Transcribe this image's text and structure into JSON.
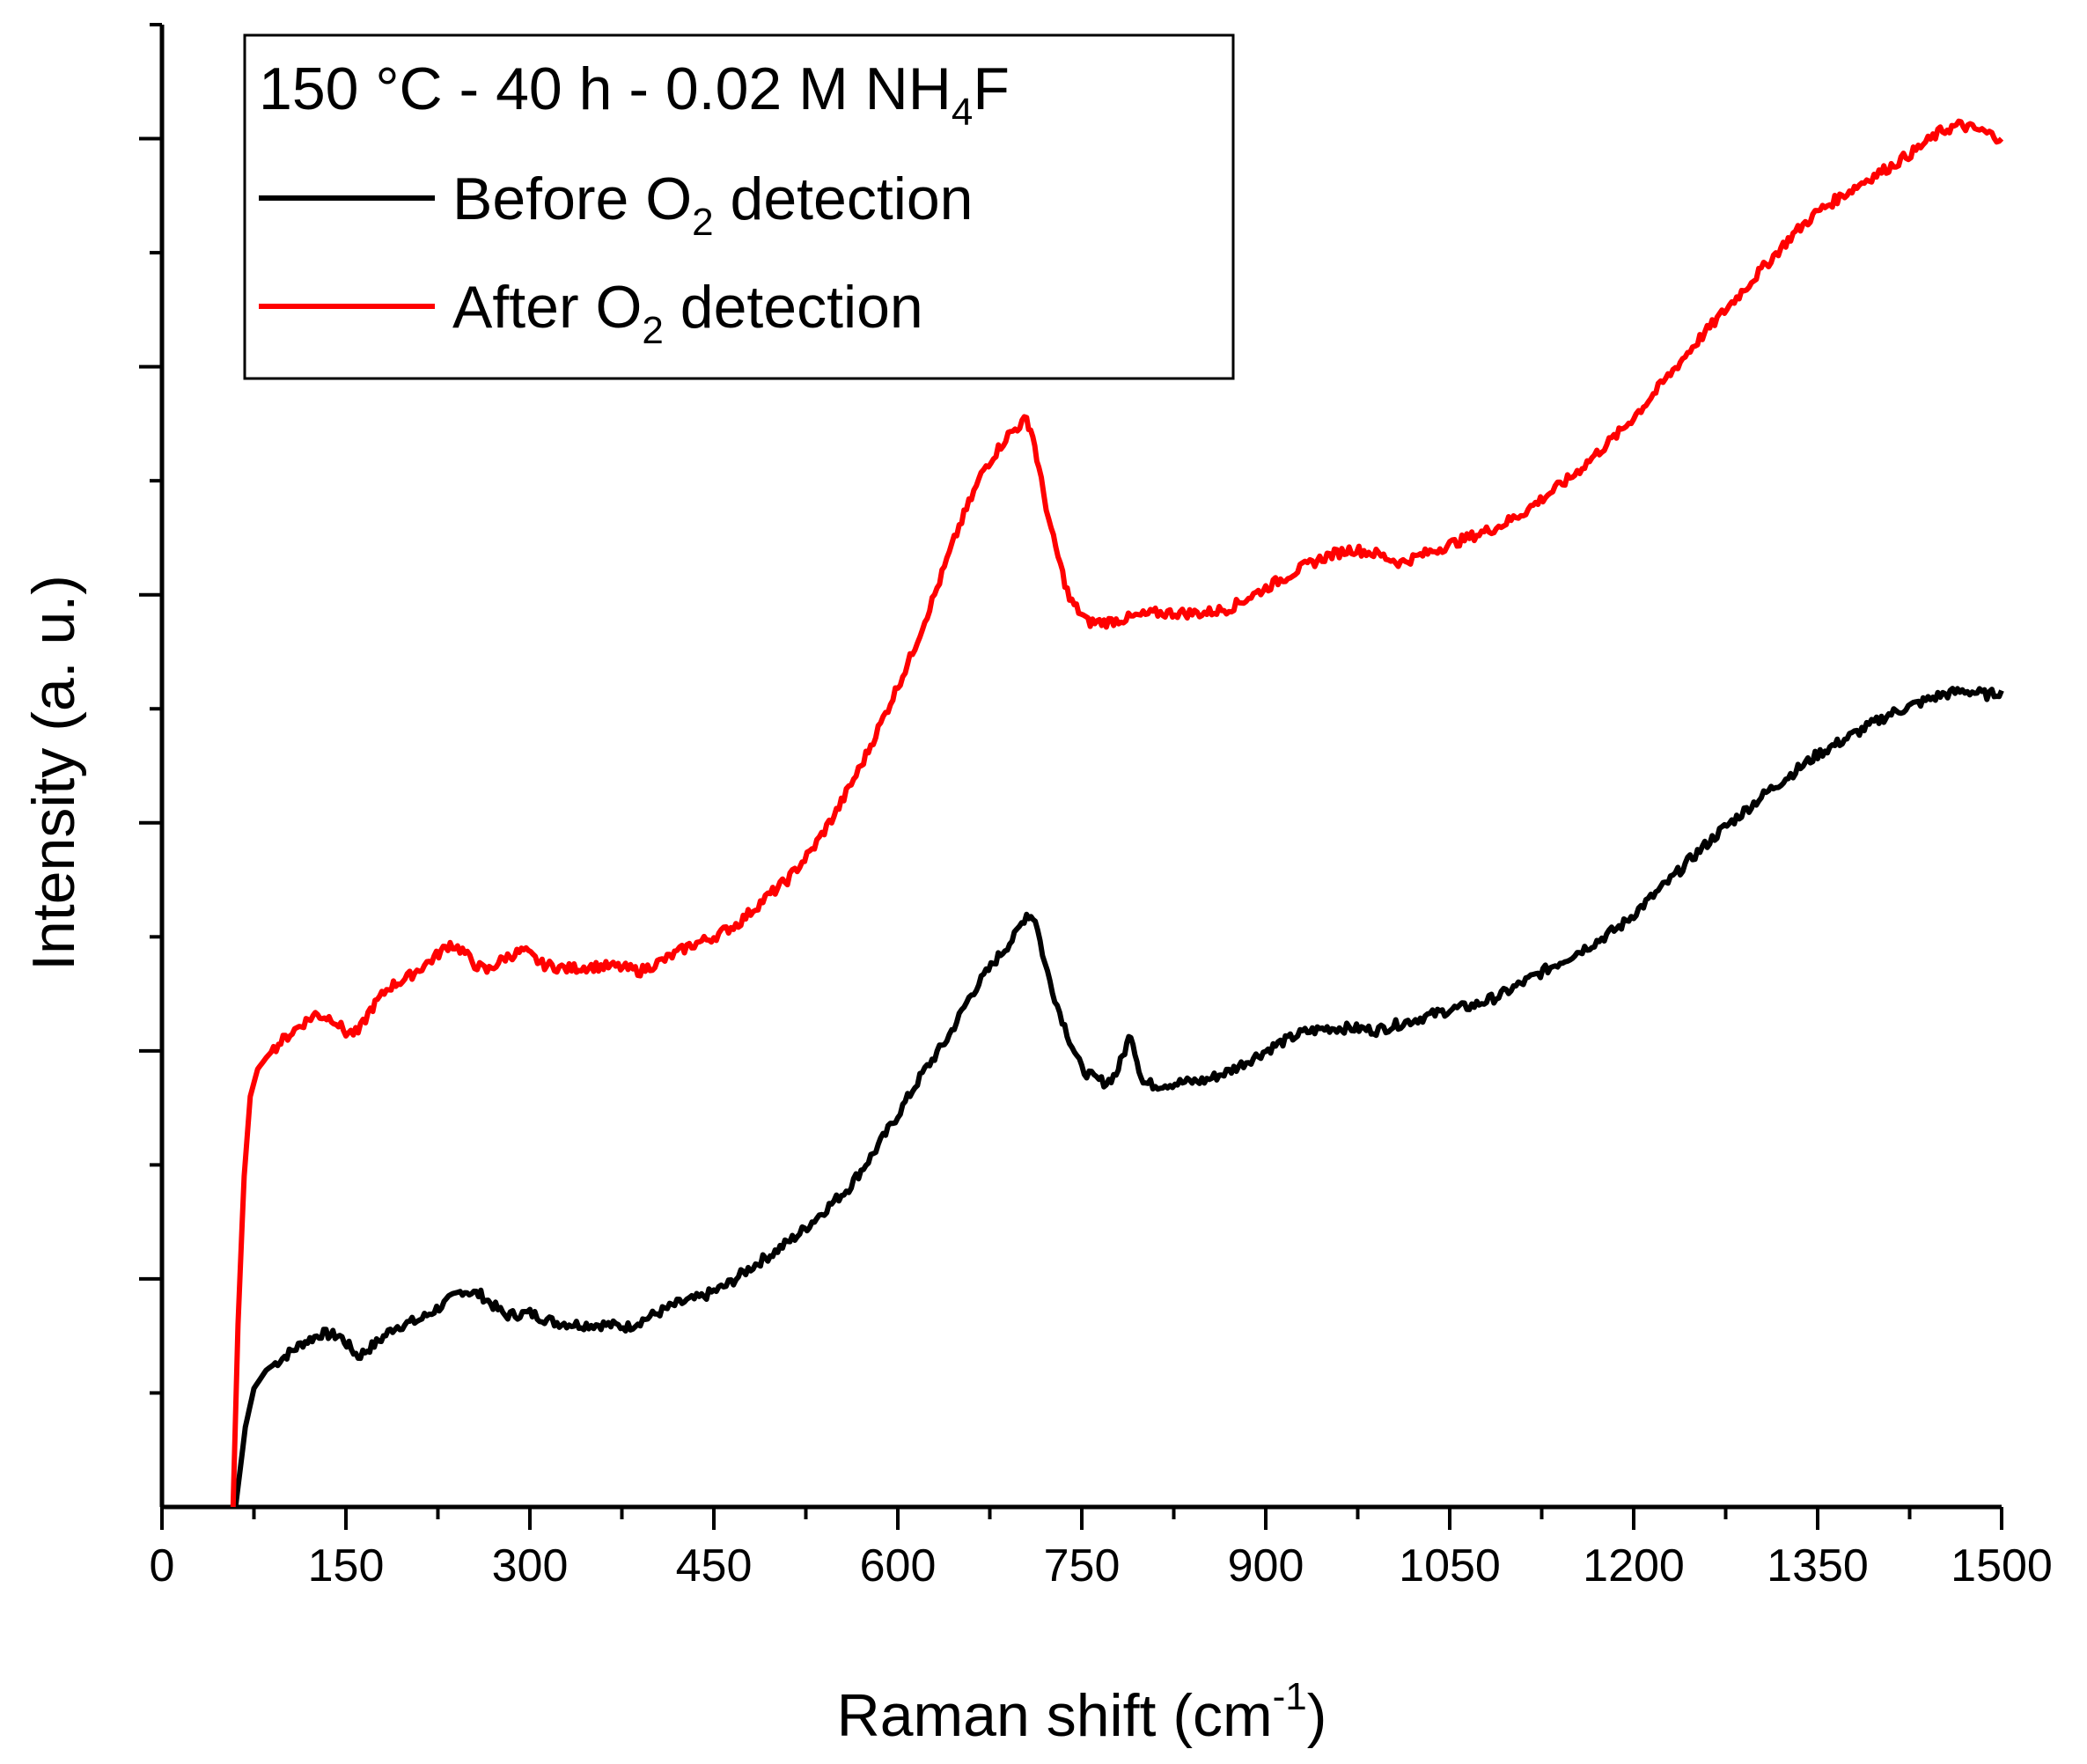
{
  "chart_data": {
    "type": "line",
    "title": "",
    "xlabel": "Raman shift (cm",
    "xlabel_sup": "-1",
    "xlabel_end": ")",
    "ylabel": "Intensity (a. u.)",
    "xlim": [
      0,
      1500
    ],
    "ylim": [
      0,
      6.5
    ],
    "grid": false,
    "x_ticks": [
      "0",
      "150",
      "300",
      "450",
      "600",
      "750",
      "900",
      "1050",
      "1200",
      "1350",
      "1500"
    ],
    "legend": {
      "placement": "top-left",
      "title_main": "150 °C - 40 h - 0.02 M NH",
      "title_sub": "4",
      "title_end": "F",
      "entries": [
        {
          "pre": "Before O",
          "sub": "2",
          "post": " detection",
          "color": "#000000"
        },
        {
          "pre": "After O",
          "sub": "2",
          "post": " detection",
          "color": "#ff0000"
        }
      ]
    },
    "series": [
      {
        "name": "Before O2 detection",
        "color": "#000000",
        "x": [
          60,
          68,
          75,
          85,
          100,
          115,
          130,
          145,
          160,
          175,
          190,
          210,
          230,
          245,
          260,
          280,
          300,
          320,
          340,
          360,
          380,
          400,
          420,
          440,
          460,
          480,
          500,
          520,
          540,
          560,
          580,
          600,
          620,
          640,
          660,
          680,
          695,
          705,
          712,
          720,
          730,
          740,
          750,
          760,
          770,
          778,
          785,
          790,
          795,
          800,
          810,
          830,
          850,
          870,
          890,
          910,
          930,
          950,
          970,
          990,
          1010,
          1030,
          1050,
          1070,
          1090,
          1110,
          1130,
          1150,
          1170,
          1190,
          1210,
          1230,
          1250,
          1270,
          1290,
          1310,
          1330,
          1350,
          1370,
          1390,
          1410,
          1430,
          1450,
          1470,
          1490,
          1500
        ],
        "y": [
          0.0,
          0.35,
          0.52,
          0.6,
          0.66,
          0.72,
          0.76,
          0.75,
          0.66,
          0.72,
          0.79,
          0.82,
          0.89,
          0.95,
          0.93,
          0.84,
          0.85,
          0.81,
          0.8,
          0.8,
          0.79,
          0.84,
          0.89,
          0.92,
          0.97,
          1.05,
          1.12,
          1.2,
          1.3,
          1.4,
          1.55,
          1.72,
          1.9,
          2.05,
          2.25,
          2.4,
          2.5,
          2.6,
          2.58,
          2.38,
          2.2,
          2.05,
          1.92,
          1.88,
          1.86,
          1.9,
          2.0,
          2.08,
          1.96,
          1.86,
          1.85,
          1.86,
          1.87,
          1.91,
          1.97,
          2.03,
          2.08,
          2.1,
          2.1,
          2.09,
          2.12,
          2.15,
          2.18,
          2.2,
          2.24,
          2.3,
          2.36,
          2.42,
          2.48,
          2.55,
          2.65,
          2.75,
          2.86,
          2.96,
          3.05,
          3.14,
          3.22,
          3.3,
          3.36,
          3.42,
          3.48,
          3.52,
          3.56,
          3.58,
          3.56,
          3.58
        ]
      },
      {
        "name": "After O2 detection",
        "color": "#ff0000",
        "x": [
          58,
          62,
          67,
          72,
          78,
          85,
          95,
          110,
          125,
          140,
          150,
          160,
          170,
          185,
          200,
          220,
          235,
          245,
          255,
          265,
          280,
          295,
          310,
          330,
          350,
          370,
          390,
          410,
          430,
          450,
          470,
          490,
          510,
          530,
          550,
          570,
          590,
          610,
          630,
          650,
          670,
          690,
          705,
          710,
          715,
          725,
          740,
          755,
          770,
          790,
          810,
          830,
          850,
          870,
          890,
          910,
          930,
          950,
          970,
          990,
          1010,
          1030,
          1050,
          1070,
          1090,
          1110,
          1130,
          1150,
          1170,
          1190,
          1210,
          1230,
          1250,
          1270,
          1290,
          1310,
          1330,
          1350,
          1370,
          1390,
          1410,
          1430,
          1450,
          1465,
          1480,
          1490,
          1500
        ],
        "y": [
          0.0,
          0.8,
          1.45,
          1.8,
          1.92,
          1.97,
          2.03,
          2.1,
          2.16,
          2.14,
          2.08,
          2.08,
          2.18,
          2.28,
          2.32,
          2.4,
          2.47,
          2.44,
          2.38,
          2.35,
          2.41,
          2.44,
          2.38,
          2.36,
          2.37,
          2.37,
          2.35,
          2.4,
          2.46,
          2.5,
          2.56,
          2.66,
          2.75,
          2.88,
          3.05,
          3.25,
          3.48,
          3.72,
          4.0,
          4.3,
          4.55,
          4.7,
          4.77,
          4.7,
          4.55,
          4.28,
          3.98,
          3.88,
          3.88,
          3.9,
          3.92,
          3.92,
          3.92,
          3.94,
          4.0,
          4.06,
          4.12,
          4.17,
          4.2,
          4.18,
          4.14,
          4.18,
          4.22,
          4.26,
          4.3,
          4.36,
          4.44,
          4.52,
          4.62,
          4.72,
          4.84,
          4.97,
          5.1,
          5.22,
          5.34,
          5.46,
          5.58,
          5.68,
          5.75,
          5.82,
          5.88,
          5.95,
          6.03,
          6.06,
          6.04,
          6.02,
          6.0
        ]
      }
    ]
  }
}
